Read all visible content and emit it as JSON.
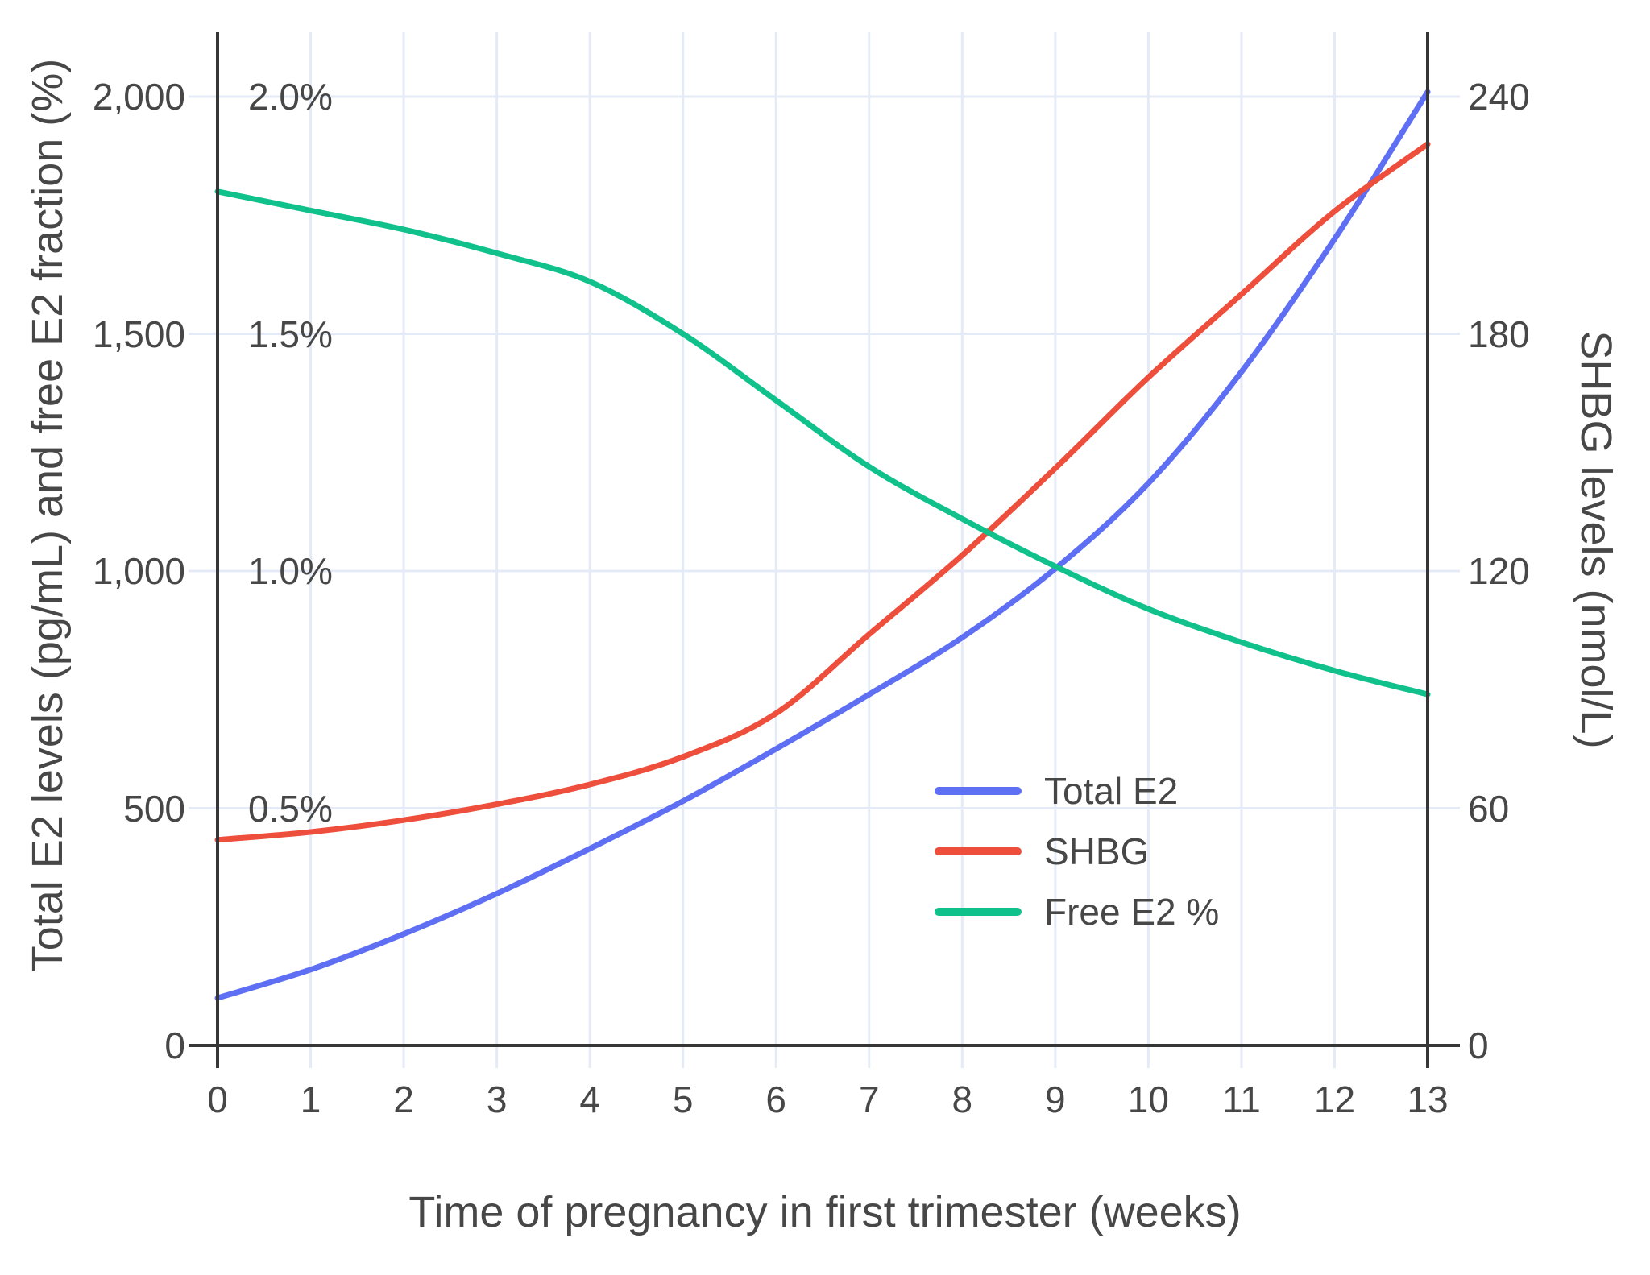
{
  "chart_data": {
    "type": "line",
    "x": [
      0,
      1,
      2,
      3,
      4,
      5,
      6,
      7,
      8,
      9,
      10,
      11,
      12,
      13
    ],
    "xlabel": "Time of pregnancy in first trimester (weeks)",
    "ylabel_left": "Total E2 levels (pg/mL) and free E2 fraction (%)",
    "ylabel_right": "SHBG levels (nmol/L)",
    "ylim_left": [
      0,
      2120
    ],
    "ylim_right": [
      0,
      254
    ],
    "grid": true,
    "legend_position": "inside-right-middle",
    "series": [
      {
        "name": "Total E2",
        "axis": "left",
        "unit": "pg/mL",
        "color": "#5E6FF3",
        "values": [
          100,
          160,
          235,
          320,
          415,
          515,
          625,
          740,
          860,
          1005,
          1185,
          1420,
          1700,
          2010
        ]
      },
      {
        "name": "SHBG",
        "axis": "right",
        "unit": "nmol/L",
        "color": "#EE4E3C",
        "values": [
          52,
          54,
          57,
          61,
          66,
          73,
          84,
          104,
          124,
          146,
          169,
          190,
          211,
          228
        ]
      },
      {
        "name": "Free E2 %",
        "axis": "left_percent",
        "unit": "%",
        "color": "#10C18C",
        "values": [
          1.8,
          1.76,
          1.72,
          1.67,
          1.61,
          1.5,
          1.36,
          1.22,
          1.11,
          1.01,
          0.92,
          0.85,
          0.79,
          0.74
        ]
      }
    ],
    "yticks_left": [
      {
        "v": 0,
        "label": "0"
      },
      {
        "v": 500,
        "label": "500"
      },
      {
        "v": 1000,
        "label": "1,000"
      },
      {
        "v": 1500,
        "label": "1,500"
      },
      {
        "v": 2000,
        "label": "2,000"
      }
    ],
    "yticks_percent": [
      {
        "v": 500,
        "label": "0.5%"
      },
      {
        "v": 1000,
        "label": "1.0%"
      },
      {
        "v": 1500,
        "label": "1.5%"
      },
      {
        "v": 2000,
        "label": "2.0%"
      }
    ],
    "yticks_right": [
      {
        "v": 0,
        "label": "0"
      },
      {
        "v": 60,
        "label": "60"
      },
      {
        "v": 120,
        "label": "120"
      },
      {
        "v": 180,
        "label": "180"
      },
      {
        "v": 240,
        "label": "240"
      }
    ],
    "xticks": [
      {
        "v": 0,
        "label": "0"
      },
      {
        "v": 1,
        "label": "1"
      },
      {
        "v": 2,
        "label": "2"
      },
      {
        "v": 3,
        "label": "3"
      },
      {
        "v": 4,
        "label": "4"
      },
      {
        "v": 5,
        "label": "5"
      },
      {
        "v": 6,
        "label": "6"
      },
      {
        "v": 7,
        "label": "7"
      },
      {
        "v": 8,
        "label": "8"
      },
      {
        "v": 9,
        "label": "9"
      },
      {
        "v": 10,
        "label": "10"
      },
      {
        "v": 11,
        "label": "11"
      },
      {
        "v": 12,
        "label": "12"
      },
      {
        "v": 13,
        "label": "13"
      }
    ]
  },
  "colors": {
    "grid": "#E5EBF6",
    "axis": "#363636",
    "text": "#474747",
    "background": "#FFFFFF"
  }
}
